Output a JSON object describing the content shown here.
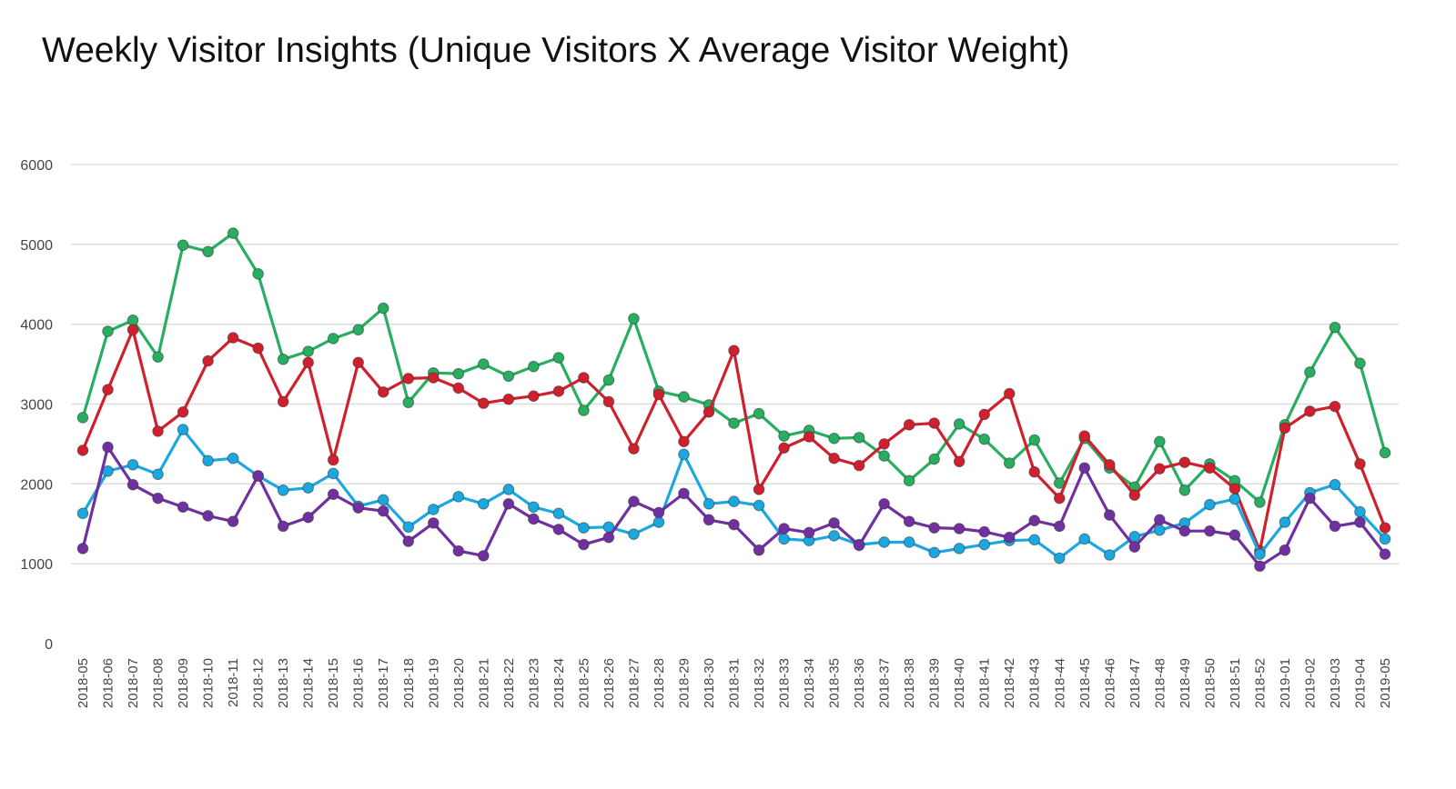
{
  "chart_data": {
    "type": "line",
    "title": "Weekly Visitor Insights (Unique Visitors X Average Visitor Weight)",
    "xlabel": "",
    "ylabel": "",
    "ylim": [
      0,
      6000
    ],
    "yticks": [
      "0",
      "1000",
      "2000",
      "3000",
      "4000",
      "5000",
      "6000"
    ],
    "grid": true,
    "legend": "none",
    "categories": [
      "2018-05",
      "2018-06",
      "2018-07",
      "2018-08",
      "2018-09",
      "2018-10",
      "2018-11",
      "2018-12",
      "2018-13",
      "2018-14",
      "2018-15",
      "2018-16",
      "2018-17",
      "2018-18",
      "2018-19",
      "2018-20",
      "2018-21",
      "2018-22",
      "2018-23",
      "2018-24",
      "2018-25",
      "2018-26",
      "2018-27",
      "2018-28",
      "2018-29",
      "2018-30",
      "2018-31",
      "2018-32",
      "2018-33",
      "2018-34",
      "2018-35",
      "2018-36",
      "2018-37",
      "2018-38",
      "2018-39",
      "2018-40",
      "2018-41",
      "2018-42",
      "2018-43",
      "2018-44",
      "2018-45",
      "2018-46",
      "2018-47",
      "2018-48",
      "2018-49",
      "2018-50",
      "2018-51",
      "2018-52",
      "2019-01",
      "2019-02",
      "2019-03",
      "2019-04",
      "2019-05"
    ],
    "series": [
      {
        "color": "#27ae60",
        "values": [
          2830,
          3910,
          4050,
          3590,
          4990,
          4910,
          5140,
          4630,
          3560,
          3660,
          3820,
          3930,
          4200,
          3020,
          3390,
          3380,
          3500,
          3350,
          3470,
          3580,
          2920,
          3300,
          4070,
          3160,
          3090,
          2990,
          2760,
          2880,
          2600,
          2670,
          2570,
          2580,
          2350,
          2040,
          2310,
          2750,
          2560,
          2260,
          2550,
          2010,
          2570,
          2200,
          1960,
          2530,
          1920,
          2250,
          2040,
          1770,
          2740,
          3400,
          3960,
          3510,
          2390
        ]
      },
      {
        "color": "#d0202e",
        "values": [
          2420,
          3180,
          3930,
          2660,
          2900,
          3540,
          3830,
          3700,
          3030,
          3520,
          2300,
          3520,
          3150,
          3320,
          3330,
          3200,
          3010,
          3060,
          3100,
          3160,
          3330,
          3030,
          2440,
          3120,
          2530,
          2900,
          3670,
          1930,
          2450,
          2590,
          2320,
          2230,
          2500,
          2740,
          2760,
          2280,
          2870,
          3130,
          2150,
          1820,
          2600,
          2240,
          1860,
          2190,
          2270,
          2200,
          1940,
          1160,
          2700,
          2910,
          2970,
          2250,
          1450
        ]
      },
      {
        "color": "#1ba8e0",
        "values": [
          1630,
          2160,
          2240,
          2120,
          2680,
          2290,
          2320,
          2100,
          1920,
          1950,
          2130,
          1720,
          1800,
          1460,
          1680,
          1840,
          1750,
          1930,
          1710,
          1630,
          1450,
          1460,
          1370,
          1520,
          2370,
          1750,
          1780,
          1730,
          1310,
          1290,
          1350,
          1240,
          1270,
          1270,
          1140,
          1190,
          1240,
          1290,
          1300,
          1070,
          1310,
          1110,
          1340,
          1420,
          1510,
          1740,
          1810,
          1120,
          1520,
          1890,
          1990,
          1650,
          1310
        ]
      },
      {
        "color": "#7030a0",
        "values": [
          1190,
          2460,
          1990,
          1820,
          1710,
          1600,
          1530,
          2100,
          1470,
          1580,
          1870,
          1700,
          1660,
          1280,
          1510,
          1160,
          1100,
          1750,
          1560,
          1430,
          1240,
          1330,
          1780,
          1640,
          1880,
          1550,
          1490,
          1170,
          1440,
          1390,
          1510,
          1230,
          1750,
          1530,
          1450,
          1440,
          1400,
          1330,
          1540,
          1470,
          2200,
          1610,
          1210,
          1550,
          1410,
          1410,
          1360,
          970,
          1170,
          1820,
          1470,
          1520,
          1120
        ]
      }
    ]
  }
}
